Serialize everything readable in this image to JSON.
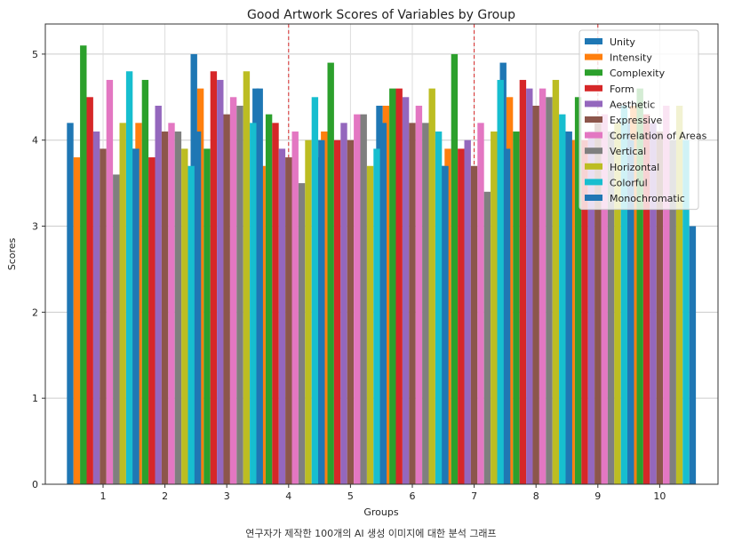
{
  "caption": "연구자가 제작한 100개의 AI 생성 이미지에 대한 분석 그래프",
  "chart_data": {
    "type": "bar",
    "title": "Good Artwork Scores of Variables by Group",
    "xlabel": "Groups",
    "ylabel": "Scores",
    "ylim": [
      0,
      5.35
    ],
    "yticks": [
      0,
      1,
      2,
      3,
      4,
      5
    ],
    "grid": true,
    "legend_position": "top-right",
    "categories": [
      "1",
      "2",
      "3",
      "4",
      "5",
      "6",
      "7",
      "8",
      "9",
      "10"
    ],
    "vertical_markers": [
      "4",
      "7",
      "9"
    ],
    "series": [
      {
        "name": "Unity",
        "color": "#1f77b4",
        "values": [
          4.2,
          3.9,
          5.0,
          4.6,
          3.8,
          4.4,
          3.7,
          4.9,
          4.1,
          4.2
        ]
      },
      {
        "name": "Intensity",
        "color": "#ff7f0e",
        "values": [
          3.8,
          4.2,
          4.6,
          3.7,
          4.1,
          4.4,
          3.9,
          4.5,
          4.0,
          4.4
        ]
      },
      {
        "name": "Complexity",
        "color": "#2ca02c",
        "values": [
          5.1,
          4.7,
          3.9,
          4.3,
          4.9,
          4.6,
          5.0,
          4.1,
          4.5,
          4.6
        ]
      },
      {
        "name": "Form",
        "color": "#d62728",
        "values": [
          4.5,
          3.8,
          4.8,
          4.2,
          4.0,
          4.6,
          3.9,
          4.7,
          4.0,
          4.3
        ]
      },
      {
        "name": "Aesthetic",
        "color": "#9467bd",
        "values": [
          4.1,
          4.4,
          4.7,
          3.9,
          4.2,
          4.5,
          4.0,
          4.6,
          4.1,
          4.2
        ]
      },
      {
        "name": "Expressive",
        "color": "#8c564b",
        "values": [
          3.9,
          4.1,
          4.3,
          3.8,
          4.0,
          4.2,
          3.7,
          4.4,
          4.2,
          4.1
        ]
      },
      {
        "name": "Correlation of Areas",
        "color": "#e377c2",
        "values": [
          4.7,
          4.2,
          4.5,
          4.1,
          4.3,
          4.4,
          4.2,
          4.6,
          4.3,
          4.4
        ]
      },
      {
        "name": "Vertical",
        "color": "#7f7f7f",
        "values": [
          3.6,
          4.1,
          4.4,
          3.5,
          4.3,
          4.2,
          3.4,
          4.5,
          4.1,
          4.0
        ]
      },
      {
        "name": "Horizontal",
        "color": "#bcbd22",
        "values": [
          4.2,
          3.9,
          4.8,
          4.0,
          3.7,
          4.6,
          4.1,
          4.7,
          4.2,
          4.4
        ]
      },
      {
        "name": "Colorful",
        "color": "#17becf",
        "values": [
          4.8,
          3.7,
          4.2,
          4.5,
          3.9,
          4.1,
          4.7,
          4.3,
          4.4,
          4.0
        ]
      },
      {
        "name": "Monochromatic",
        "color": "#1f77b4",
        "values": [
          3.9,
          4.1,
          4.6,
          4.0,
          4.2,
          3.7,
          3.9,
          4.1,
          4.0,
          3.0
        ]
      }
    ]
  }
}
